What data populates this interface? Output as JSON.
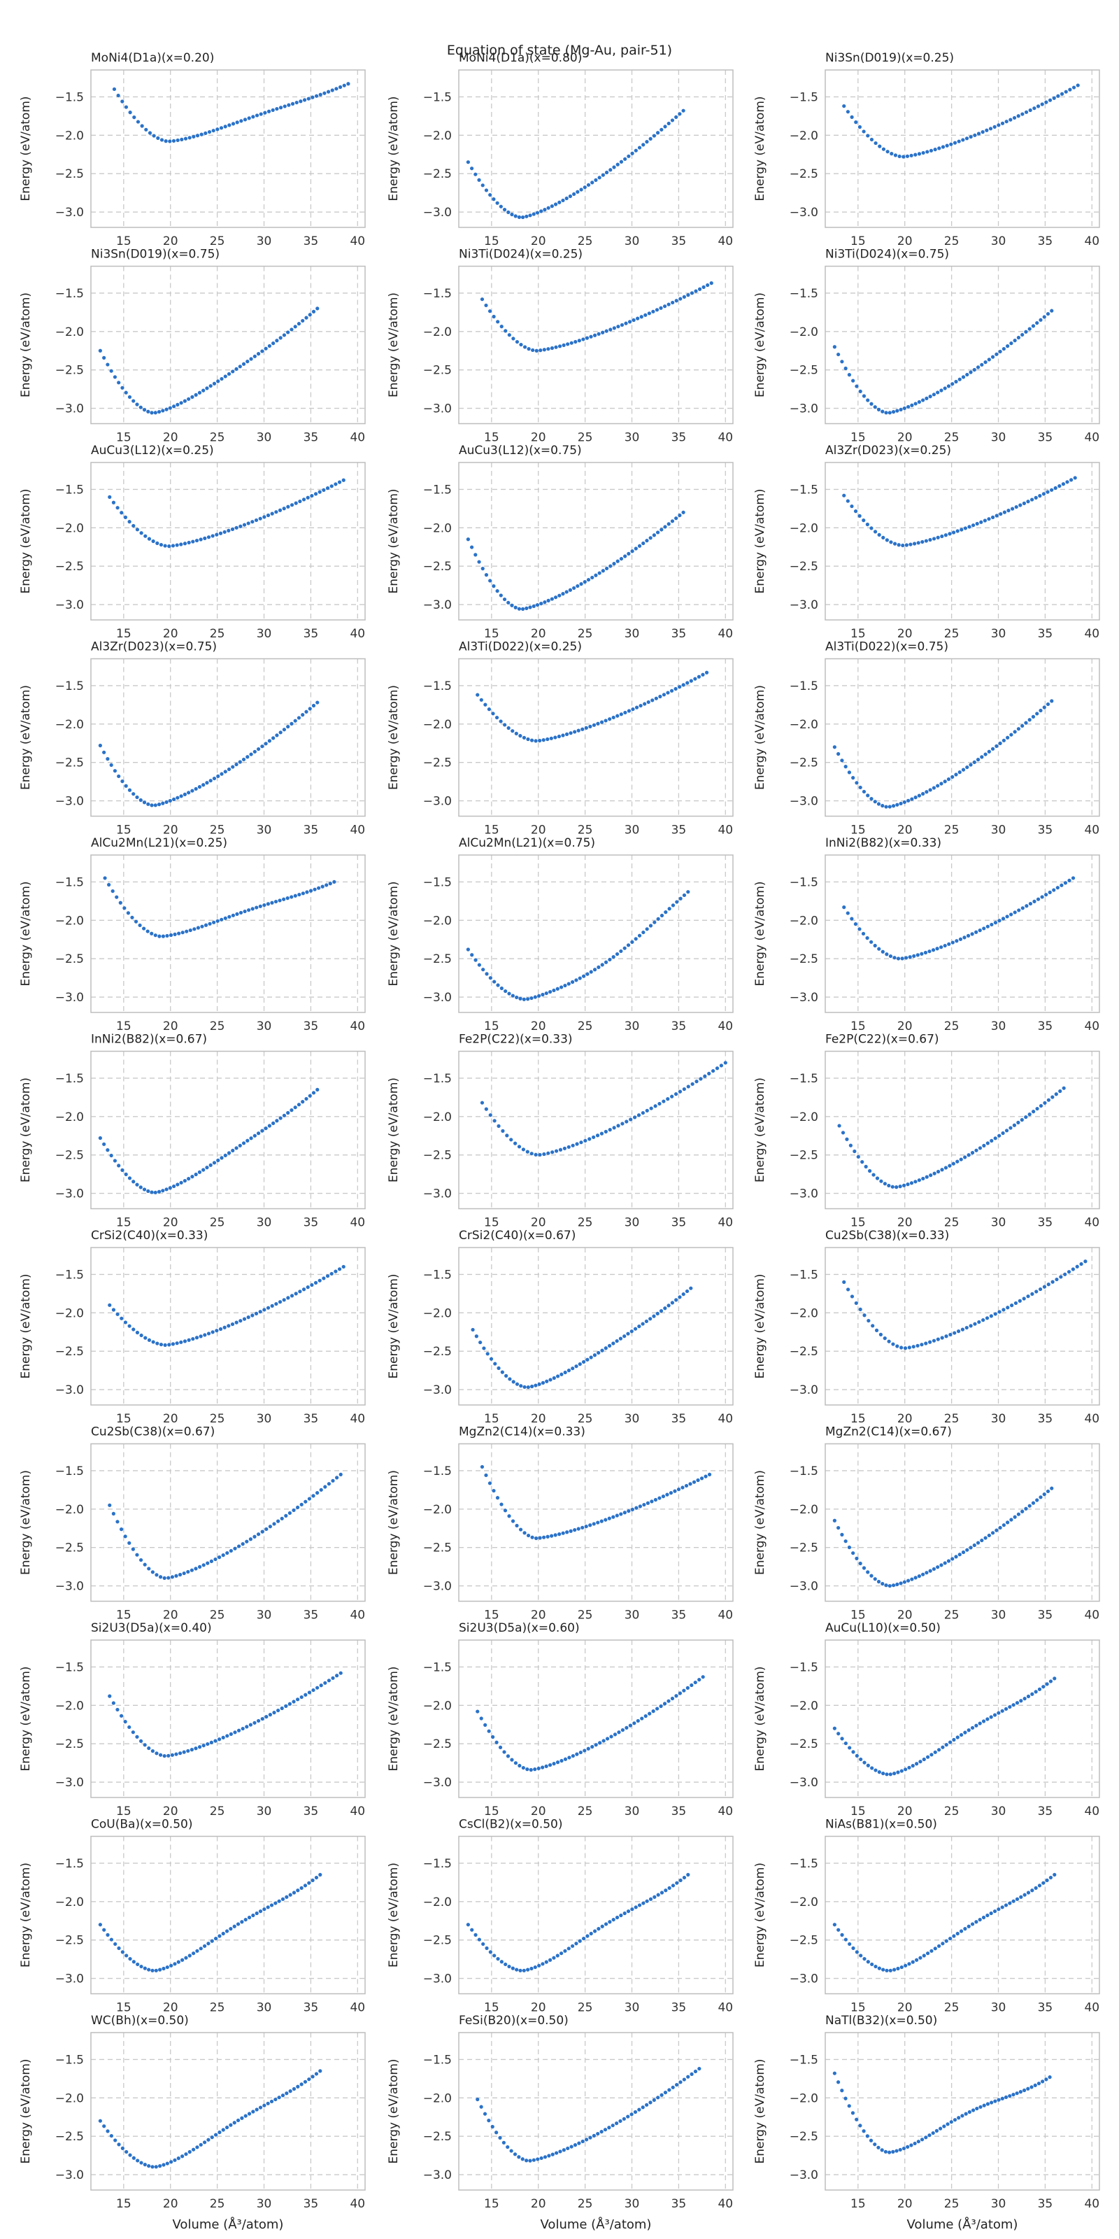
{
  "figure": {
    "suptitle": "Equation of state (Mg-Au, pair-51)",
    "xlabel": "Volume (Å³/atom)",
    "ylabel": "Energy (eV/atom)",
    "xticks": [
      15,
      20,
      25,
      30,
      35,
      40
    ],
    "yticks": [
      -1.5,
      -2.0,
      -2.5,
      -3.0
    ],
    "xlim": [
      11.5,
      40.8
    ],
    "ylim": [
      -3.2,
      -1.15
    ],
    "grid": true,
    "marker_color": "#2a72c8"
  },
  "chart_data": [
    {
      "type": "scatter",
      "title": "MoNi4(D1a)(x=0.20)",
      "vmin": 14.0,
      "vmax": 39.0,
      "v0": 19.8,
      "e0": -2.08,
      "e_start": -1.4,
      "e_end": -1.33,
      "bump": 0.05
    },
    {
      "type": "scatter",
      "title": "MoNi4(D1a)(x=0.80)",
      "vmin": 12.5,
      "vmax": 35.5,
      "v0": 18.2,
      "e0": -3.07,
      "e_start": -2.35,
      "e_end": -1.68,
      "bump": 0.0
    },
    {
      "type": "scatter",
      "title": "Ni3Sn(D019)(x=0.25)",
      "vmin": 13.5,
      "vmax": 38.5,
      "v0": 19.8,
      "e0": -2.28,
      "e_start": -1.62,
      "e_end": -1.35,
      "bump": 0.0
    },
    {
      "type": "scatter",
      "title": "Ni3Sn(D019)(x=0.75)",
      "vmin": 12.5,
      "vmax": 35.7,
      "v0": 18.2,
      "e0": -3.06,
      "e_start": -2.25,
      "e_end": -1.7,
      "bump": 0.03
    },
    {
      "type": "scatter",
      "title": "Ni3Ti(D024)(x=0.25)",
      "vmin": 14.0,
      "vmax": 38.5,
      "v0": 19.8,
      "e0": -2.25,
      "e_start": -1.58,
      "e_end": -1.37,
      "bump": 0.0
    },
    {
      "type": "scatter",
      "title": "Ni3Ti(D024)(x=0.75)",
      "vmin": 12.5,
      "vmax": 35.7,
      "v0": 18.2,
      "e0": -3.06,
      "e_start": -2.2,
      "e_end": -1.73,
      "bump": 0.0
    },
    {
      "type": "scatter",
      "title": "AuCu3(L12)(x=0.25)",
      "vmin": 13.5,
      "vmax": 38.5,
      "v0": 19.8,
      "e0": -2.24,
      "e_start": -1.6,
      "e_end": -1.38,
      "bump": 0.0
    },
    {
      "type": "scatter",
      "title": "AuCu3(L12)(x=0.75)",
      "vmin": 12.5,
      "vmax": 35.5,
      "v0": 18.2,
      "e0": -3.06,
      "e_start": -2.15,
      "e_end": -1.8,
      "bump": 0.0
    },
    {
      "type": "scatter",
      "title": "Al3Zr(D023)(x=0.25)",
      "vmin": 13.5,
      "vmax": 38.2,
      "v0": 19.8,
      "e0": -2.23,
      "e_start": -1.58,
      "e_end": -1.35,
      "bump": 0.0
    },
    {
      "type": "scatter",
      "title": "Al3Zr(D023)(x=0.75)",
      "vmin": 12.5,
      "vmax": 35.7,
      "v0": 18.2,
      "e0": -3.06,
      "e_start": -2.28,
      "e_end": -1.72,
      "bump": 0.0
    },
    {
      "type": "scatter",
      "title": "Al3Ti(D022)(x=0.25)",
      "vmin": 13.5,
      "vmax": 38.0,
      "v0": 19.8,
      "e0": -2.22,
      "e_start": -1.62,
      "e_end": -1.33,
      "bump": 0.0
    },
    {
      "type": "scatter",
      "title": "Al3Ti(D022)(x=0.75)",
      "vmin": 12.5,
      "vmax": 35.7,
      "v0": 18.2,
      "e0": -3.08,
      "e_start": -2.3,
      "e_end": -1.7,
      "bump": 0.0
    },
    {
      "type": "scatter",
      "title": "AlCu2Mn(L21)(x=0.25)",
      "vmin": 13.0,
      "vmax": 37.5,
      "v0": 19.0,
      "e0": -2.21,
      "e_start": -1.45,
      "e_end": -1.5,
      "bump": 0.06
    },
    {
      "type": "scatter",
      "title": "AlCu2Mn(L21)(x=0.75)",
      "vmin": 12.5,
      "vmax": 36.0,
      "v0": 18.6,
      "e0": -3.03,
      "e_start": -2.38,
      "e_end": -1.63,
      "bump": -0.06
    },
    {
      "type": "scatter",
      "title": "InNi2(B82)(x=0.33)",
      "vmin": 13.5,
      "vmax": 38.0,
      "v0": 19.5,
      "e0": -2.5,
      "e_start": -1.83,
      "e_end": -1.45,
      "bump": 0.0
    },
    {
      "type": "scatter",
      "title": "InNi2(B82)(x=0.67)",
      "vmin": 12.5,
      "vmax": 35.7,
      "v0": 18.3,
      "e0": -2.99,
      "e_start": -2.28,
      "e_end": -1.65,
      "bump": 0.05
    },
    {
      "type": "scatter",
      "title": "Fe2P(C22)(x=0.33)",
      "vmin": 14.0,
      "vmax": 40.0,
      "v0": 20.0,
      "e0": -2.5,
      "e_start": -1.82,
      "e_end": -1.3,
      "bump": 0.0
    },
    {
      "type": "scatter",
      "title": "Fe2P(C22)(x=0.67)",
      "vmin": 13.0,
      "vmax": 37.0,
      "v0": 19.0,
      "e0": -2.92,
      "e_start": -2.12,
      "e_end": -1.63,
      "bump": 0.0
    },
    {
      "type": "scatter",
      "title": "CrSi2(C40)(x=0.33)",
      "vmin": 13.5,
      "vmax": 38.5,
      "v0": 19.5,
      "e0": -2.42,
      "e_start": -1.9,
      "e_end": -1.4,
      "bump": 0.0
    },
    {
      "type": "scatter",
      "title": "CrSi2(C40)(x=0.67)",
      "vmin": 13.0,
      "vmax": 36.3,
      "v0": 18.8,
      "e0": -2.97,
      "e_start": -2.22,
      "e_end": -1.68,
      "bump": 0.03
    },
    {
      "type": "scatter",
      "title": "Cu2Sb(C38)(x=0.33)",
      "vmin": 13.5,
      "vmax": 39.3,
      "v0": 20.0,
      "e0": -2.46,
      "e_start": -1.6,
      "e_end": -1.33,
      "bump": 0.0
    },
    {
      "type": "scatter",
      "title": "Cu2Sb(C38)(x=0.67)",
      "vmin": 13.5,
      "vmax": 38.2,
      "v0": 19.5,
      "e0": -2.9,
      "e_start": -1.95,
      "e_end": -1.55,
      "bump": 0.0
    },
    {
      "type": "scatter",
      "title": "MgZn2(C14)(x=0.33)",
      "vmin": 14.0,
      "vmax": 38.3,
      "v0": 19.8,
      "e0": -2.38,
      "e_start": -1.45,
      "e_end": -1.55,
      "bump": 0.0
    },
    {
      "type": "scatter",
      "title": "MgZn2(C14)(x=0.67)",
      "vmin": 12.5,
      "vmax": 35.7,
      "v0": 18.4,
      "e0": -3.0,
      "e_start": -2.15,
      "e_end": -1.73,
      "bump": 0.0
    },
    {
      "type": "scatter",
      "title": "Si2U3(D5a)(x=0.40)",
      "vmin": 13.5,
      "vmax": 38.2,
      "v0": 19.5,
      "e0": -2.66,
      "e_start": -1.88,
      "e_end": -1.58,
      "bump": 0.0
    },
    {
      "type": "scatter",
      "title": "Si2U3(D5a)(x=0.60)",
      "vmin": 13.5,
      "vmax": 37.6,
      "v0": 19.2,
      "e0": -2.84,
      "e_start": -2.08,
      "e_end": -1.63,
      "bump": 0.0
    },
    {
      "type": "scatter",
      "title": "AuCu(L10)(x=0.50)",
      "vmin": 12.5,
      "vmax": 36.0,
      "v0": 18.3,
      "e0": -2.9,
      "e_start": -2.3,
      "e_end": -1.65,
      "bump": 0.11
    },
    {
      "type": "scatter",
      "title": "CoU(Ba)(x=0.50)",
      "vmin": 12.5,
      "vmax": 36.0,
      "v0": 18.3,
      "e0": -2.9,
      "e_start": -2.3,
      "e_end": -1.65,
      "bump": 0.11
    },
    {
      "type": "scatter",
      "title": "CsCl(B2)(x=0.50)",
      "vmin": 12.5,
      "vmax": 36.0,
      "v0": 18.3,
      "e0": -2.9,
      "e_start": -2.3,
      "e_end": -1.65,
      "bump": 0.11
    },
    {
      "type": "scatter",
      "title": "NiAs(B81)(x=0.50)",
      "vmin": 12.5,
      "vmax": 36.0,
      "v0": 18.3,
      "e0": -2.9,
      "e_start": -2.3,
      "e_end": -1.65,
      "bump": 0.11
    },
    {
      "type": "scatter",
      "title": "WC(Bh)(x=0.50)",
      "vmin": 12.5,
      "vmax": 36.0,
      "v0": 18.3,
      "e0": -2.9,
      "e_start": -2.3,
      "e_end": -1.65,
      "bump": 0.11
    },
    {
      "type": "scatter",
      "title": "FeSi(B20)(x=0.50)",
      "vmin": 13.5,
      "vmax": 37.2,
      "v0": 19.0,
      "e0": -2.82,
      "e_start": -2.02,
      "e_end": -1.62,
      "bump": 0.0
    },
    {
      "type": "scatter",
      "title": "NaTl(B32)(x=0.50)",
      "vmin": 12.5,
      "vmax": 35.5,
      "v0": 18.3,
      "e0": -2.71,
      "e_start": -1.68,
      "e_end": -1.73,
      "bump": 0.14
    }
  ]
}
